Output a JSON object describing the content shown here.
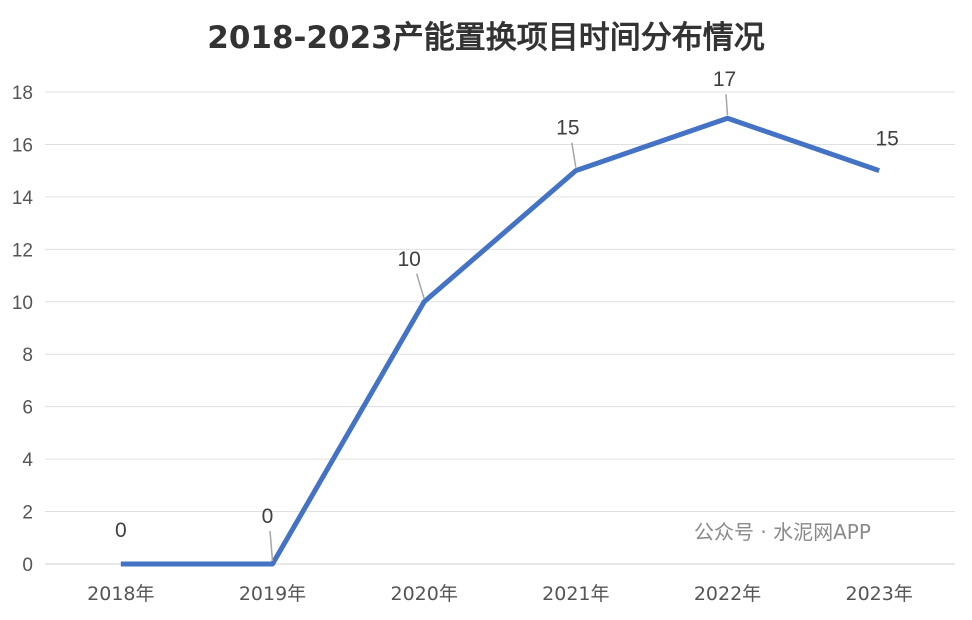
{
  "chart_data": {
    "type": "line",
    "title": "2018-2023产能置换项目时间分布情况",
    "categories": [
      "2018年",
      "2019年",
      "2020年",
      "2021年",
      "2022年",
      "2023年"
    ],
    "series": [
      {
        "values": [
          0,
          0,
          10,
          15,
          17,
          15
        ],
        "color": "#4472C4"
      }
    ],
    "data_labels": [
      "0",
      "0",
      "10",
      "15",
      "17",
      "15"
    ],
    "ylim": [
      0,
      18
    ],
    "yticks": [
      0,
      2,
      4,
      6,
      8,
      10,
      12,
      14,
      16,
      18
    ],
    "grid": true,
    "legend": "none",
    "xlabel": "",
    "ylabel": ""
  },
  "watermark": "公众号 · 水泥网APP"
}
